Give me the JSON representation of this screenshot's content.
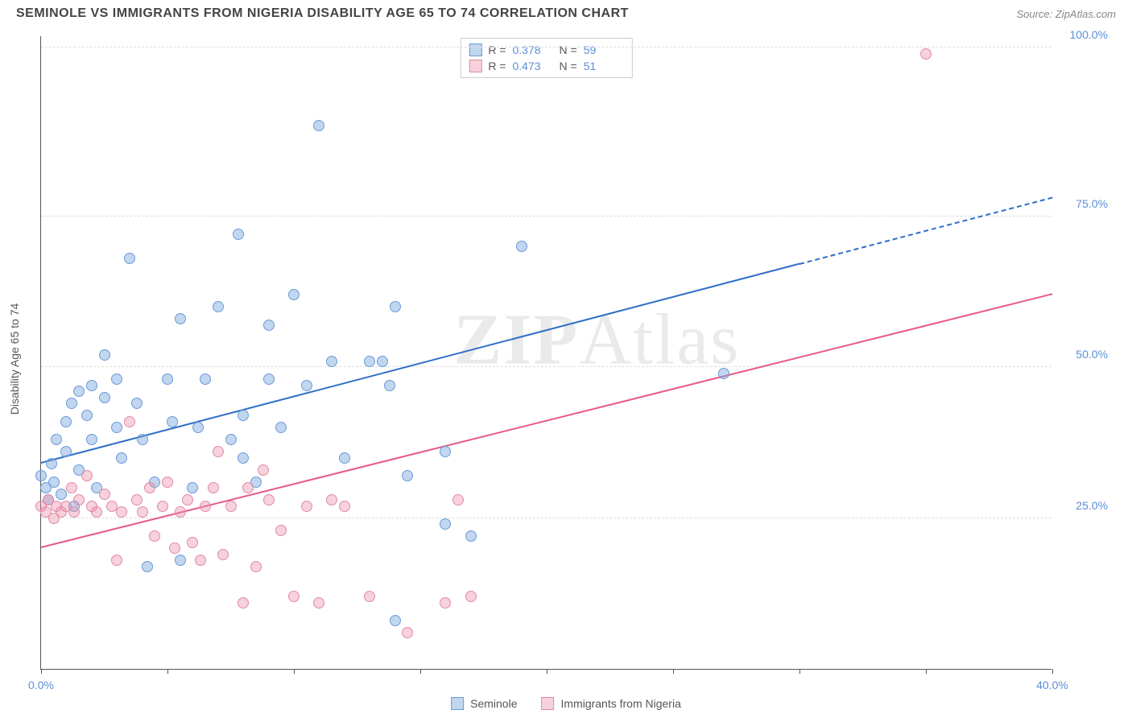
{
  "title": "SEMINOLE VS IMMIGRANTS FROM NIGERIA DISABILITY AGE 65 TO 74 CORRELATION CHART",
  "source": "Source: ZipAtlas.com",
  "ylabel": "Disability Age 65 to 74",
  "watermark_a": "ZIP",
  "watermark_b": "Atlas",
  "chart": {
    "type": "scatter",
    "xlim": [
      0,
      40
    ],
    "ylim": [
      0,
      105
    ],
    "xticks": [
      0,
      5,
      10,
      15,
      20,
      25,
      30,
      35,
      40
    ],
    "xtick_labels": {
      "0": "0.0%",
      "40": "40.0%"
    },
    "ygrid": [
      25,
      50,
      75,
      103
    ],
    "ytick_labels": {
      "25": "25.0%",
      "50": "50.0%",
      "75": "75.0%",
      "103": "100.0%"
    },
    "background_color": "#ffffff",
    "grid_color": "#dddddd",
    "axis_color": "#555555",
    "tick_label_color": "#5b8fd6"
  },
  "series": [
    {
      "name": "Seminole",
      "color_fill": "rgba(120,165,220,0.45)",
      "color_stroke": "#6a9bd8",
      "R": "0.378",
      "N": "59",
      "trend": {
        "x1": 0,
        "y1": 34,
        "x2": 30,
        "y2": 67,
        "x2_ext": 40,
        "y2_ext": 78,
        "color": "#2f6fc7"
      },
      "points": [
        [
          0,
          32
        ],
        [
          0.2,
          30
        ],
        [
          0.3,
          28
        ],
        [
          0.4,
          34
        ],
        [
          0.5,
          31
        ],
        [
          0.6,
          38
        ],
        [
          0.8,
          29
        ],
        [
          1,
          41
        ],
        [
          1,
          36
        ],
        [
          1.2,
          44
        ],
        [
          1.3,
          27
        ],
        [
          1.5,
          46
        ],
        [
          1.5,
          33
        ],
        [
          1.8,
          42
        ],
        [
          2,
          47
        ],
        [
          2,
          38
        ],
        [
          2.2,
          30
        ],
        [
          2.5,
          45
        ],
        [
          2.5,
          52
        ],
        [
          3,
          48
        ],
        [
          3,
          40
        ],
        [
          3.2,
          35
        ],
        [
          3.5,
          68
        ],
        [
          3.8,
          44
        ],
        [
          4,
          38
        ],
        [
          4.2,
          17
        ],
        [
          4.5,
          31
        ],
        [
          5,
          48
        ],
        [
          5.2,
          41
        ],
        [
          5.5,
          58
        ],
        [
          5.5,
          18
        ],
        [
          6,
          30
        ],
        [
          6.2,
          40
        ],
        [
          6.5,
          48
        ],
        [
          7,
          60
        ],
        [
          7.5,
          38
        ],
        [
          7.8,
          72
        ],
        [
          8,
          35
        ],
        [
          8,
          42
        ],
        [
          8.5,
          31
        ],
        [
          9,
          48
        ],
        [
          9,
          57
        ],
        [
          9.5,
          40
        ],
        [
          10,
          62
        ],
        [
          10.5,
          47
        ],
        [
          11,
          90
        ],
        [
          11.5,
          51
        ],
        [
          12,
          35
        ],
        [
          13,
          51
        ],
        [
          13.5,
          51
        ],
        [
          13.8,
          47
        ],
        [
          14,
          60
        ],
        [
          14.5,
          32
        ],
        [
          14,
          8
        ],
        [
          16,
          24
        ],
        [
          16,
          36
        ],
        [
          17,
          22
        ],
        [
          19,
          70
        ],
        [
          27,
          49
        ]
      ]
    },
    {
      "name": "Immigrants from Nigeria",
      "color_fill": "rgba(235,140,165,0.40)",
      "color_stroke": "#e08aa5",
      "R": "0.473",
      "N": "51",
      "trend": {
        "x1": 0,
        "y1": 20,
        "x2": 40,
        "y2": 62,
        "color": "#e65a87"
      },
      "points": [
        [
          0,
          27
        ],
        [
          0.2,
          26
        ],
        [
          0.3,
          28
        ],
        [
          0.5,
          25
        ],
        [
          0.6,
          27
        ],
        [
          0.8,
          26
        ],
        [
          1,
          27
        ],
        [
          1.2,
          30
        ],
        [
          1.3,
          26
        ],
        [
          1.5,
          28
        ],
        [
          1.8,
          32
        ],
        [
          2,
          27
        ],
        [
          2.2,
          26
        ],
        [
          2.5,
          29
        ],
        [
          2.8,
          27
        ],
        [
          3,
          18
        ],
        [
          3.2,
          26
        ],
        [
          3.5,
          41
        ],
        [
          3.8,
          28
        ],
        [
          4,
          26
        ],
        [
          4.3,
          30
        ],
        [
          4.5,
          22
        ],
        [
          4.8,
          27
        ],
        [
          5,
          31
        ],
        [
          5.3,
          20
        ],
        [
          5.5,
          26
        ],
        [
          5.8,
          28
        ],
        [
          6,
          21
        ],
        [
          6.3,
          18
        ],
        [
          6.5,
          27
        ],
        [
          6.8,
          30
        ],
        [
          7,
          36
        ],
        [
          7.2,
          19
        ],
        [
          7.5,
          27
        ],
        [
          8,
          11
        ],
        [
          8.2,
          30
        ],
        [
          8.5,
          17
        ],
        [
          8.8,
          33
        ],
        [
          9,
          28
        ],
        [
          9.5,
          23
        ],
        [
          10,
          12
        ],
        [
          10.5,
          27
        ],
        [
          11,
          11
        ],
        [
          11.5,
          28
        ],
        [
          12,
          27
        ],
        [
          13,
          12
        ],
        [
          14.5,
          6
        ],
        [
          16,
          11
        ],
        [
          16.5,
          28
        ],
        [
          17,
          12
        ],
        [
          35,
          102
        ]
      ]
    }
  ],
  "stat_legend_labels": {
    "R": "R =",
    "N": "N ="
  },
  "bottom_legend": [
    {
      "label": "Seminole",
      "fill": "rgba(120,165,220,0.45)",
      "stroke": "#6a9bd8"
    },
    {
      "label": "Immigrants from Nigeria",
      "fill": "rgba(235,140,165,0.40)",
      "stroke": "#e08aa5"
    }
  ]
}
